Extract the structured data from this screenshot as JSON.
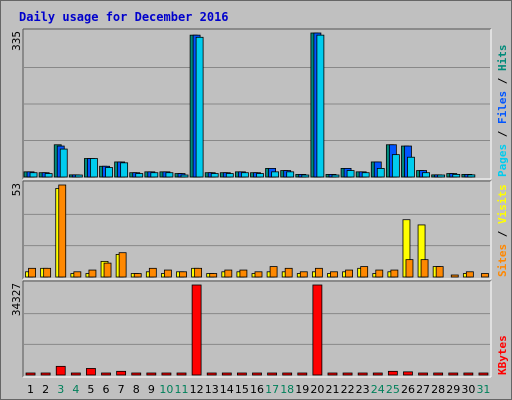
{
  "chart_data": {
    "type": "bar",
    "title": "Daily usage for December 2016",
    "categories": [
      "1",
      "2",
      "3",
      "4",
      "5",
      "6",
      "7",
      "8",
      "9",
      "10",
      "11",
      "12",
      "13",
      "14",
      "15",
      "16",
      "17",
      "18",
      "19",
      "20",
      "21",
      "22",
      "23",
      "24",
      "25",
      "26",
      "27",
      "28",
      "29",
      "30",
      "31"
    ],
    "weekend_days": [
      "3",
      "4",
      "10",
      "11",
      "17",
      "18",
      "24",
      "25",
      "31"
    ],
    "colors": {
      "title": "#0000cc",
      "plot_bg": "#c0c0c0",
      "grid": "#888888",
      "hits": "#008b7a",
      "files": "#00ccee",
      "pages": "#00ccee",
      "visits": "#ffff00",
      "sites": "#ff8800",
      "kbytes": "#ff0000",
      "weekday_label": "#000000",
      "weekend_label": "#00805a"
    },
    "panels": [
      {
        "max_label": "335",
        "ylim": [
          0,
          335
        ],
        "legend": [
          {
            "text": "Pages",
            "color": "#00ccee"
          },
          {
            "text": " / ",
            "color": "#000000"
          },
          {
            "text": "Files",
            "color": "#0055ff"
          },
          {
            "text": " / ",
            "color": "#000000"
          },
          {
            "text": "Hits",
            "color": "#008b7a"
          }
        ],
        "series": [
          {
            "name": "Hits",
            "color": "#008b7a",
            "values": [
              12,
              10,
              75,
              5,
              43,
              25,
              35,
              10,
              12,
              12,
              8,
              330,
              10,
              10,
              12,
              10,
              20,
              15,
              6,
              335,
              6,
              20,
              12,
              35,
              75,
              72,
              15,
              5,
              8,
              6,
              0
            ]
          },
          {
            "name": "Files",
            "color": "#0055ff",
            "values": [
              12,
              10,
              72,
              5,
              43,
              25,
              35,
              10,
              12,
              12,
              8,
              330,
              10,
              10,
              12,
              10,
              20,
              15,
              6,
              335,
              6,
              20,
              12,
              35,
              75,
              72,
              15,
              5,
              8,
              6,
              0
            ]
          },
          {
            "name": "Pages",
            "color": "#00ccee",
            "values": [
              10,
              8,
              65,
              4,
              43,
              22,
              33,
              8,
              10,
              10,
              4,
              325,
              8,
              8,
              10,
              8,
              12,
              12,
              4,
              330,
              4,
              15,
              10,
              20,
              52,
              46,
              10,
              3,
              6,
              5,
              0
            ]
          }
        ]
      },
      {
        "max_label": "53",
        "ylim": [
          0,
          53
        ],
        "legend": [
          {
            "text": "Sites",
            "color": "#ff8800"
          },
          {
            "text": " / ",
            "color": "#000000"
          },
          {
            "text": "Visits",
            "color": "#ffff00"
          }
        ],
        "series": [
          {
            "name": "Visits",
            "color": "#ffff00",
            "values": [
              3,
              5,
              51,
              2,
              2,
              9,
              13,
              2,
              3,
              2,
              3,
              5,
              2,
              3,
              3,
              2,
              3,
              3,
              2,
              3,
              2,
              3,
              5,
              2,
              3,
              33,
              30,
              6,
              0,
              2,
              0
            ]
          },
          {
            "name": "Sites",
            "color": "#ff8800",
            "values": [
              5,
              5,
              53,
              3,
              4,
              8,
              14,
              2,
              5,
              4,
              3,
              5,
              2,
              4,
              4,
              3,
              6,
              5,
              3,
              5,
              3,
              4,
              6,
              4,
              4,
              10,
              10,
              6,
              1,
              3,
              2
            ]
          }
        ]
      },
      {
        "max_label": "34327",
        "ylim": [
          0,
          34327
        ],
        "legend": [
          {
            "text": "KBytes",
            "color": "#ff0000"
          }
        ],
        "series": [
          {
            "name": "KBytes",
            "color": "#ff0000",
            "values": [
              500,
              500,
              3300,
              200,
              2500,
              700,
              1400,
              200,
              300,
              200,
              200,
              34327,
              300,
              300,
              300,
              300,
              300,
              300,
              200,
              34327,
              200,
              500,
              500,
              500,
              1400,
              1200,
              200,
              200,
              200,
              300,
              200
            ]
          }
        ]
      }
    ]
  }
}
